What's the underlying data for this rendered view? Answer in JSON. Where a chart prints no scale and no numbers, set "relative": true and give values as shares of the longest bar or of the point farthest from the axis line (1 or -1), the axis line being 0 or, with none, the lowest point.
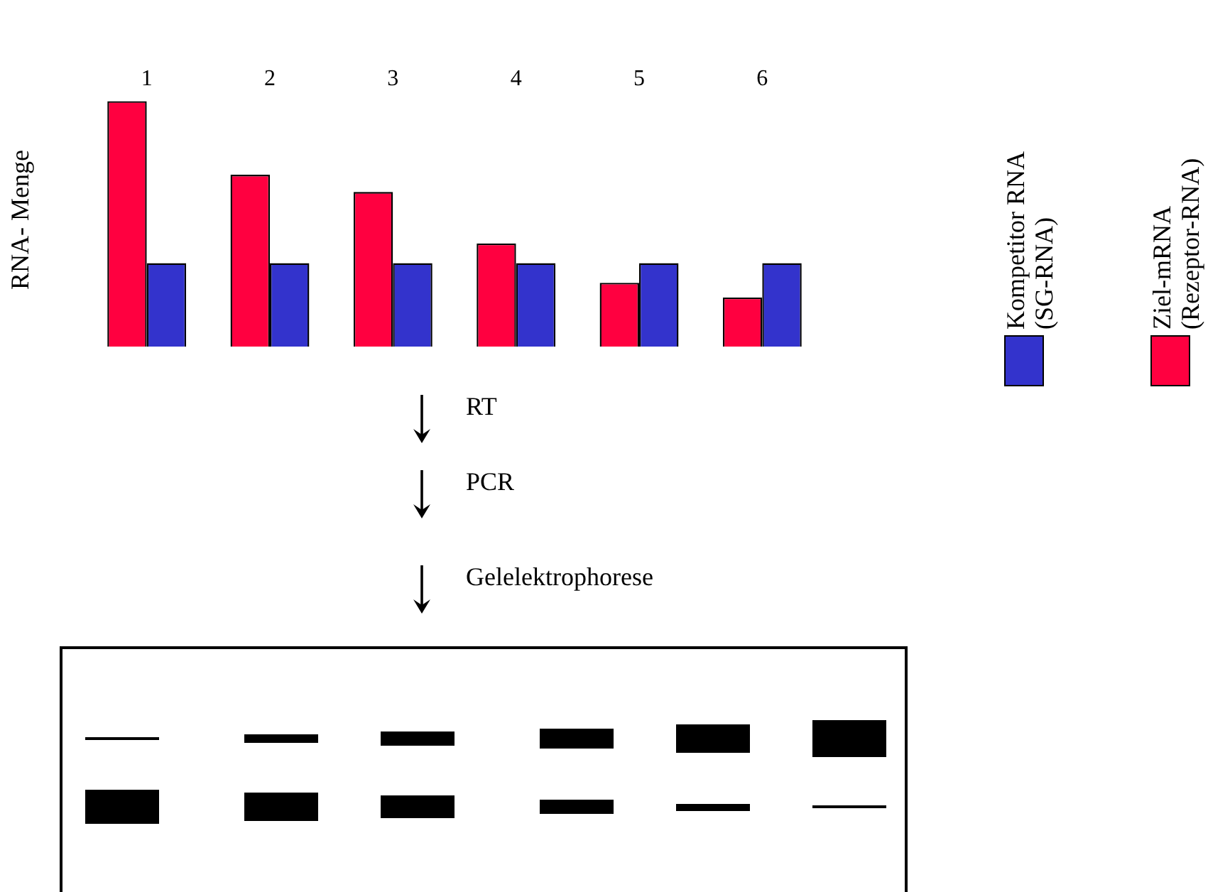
{
  "chart_data": {
    "type": "bar",
    "relative": true,
    "ylabel": "RNA- Menge",
    "categories": [
      "1",
      "2",
      "3",
      "4",
      "5",
      "6"
    ],
    "series": [
      {
        "name": "Ziel-mRNA (Rezeptor-RNA)",
        "color": "#ff0040",
        "values": [
          1,
          0.7,
          0.63,
          0.42,
          0.26,
          0.2
        ]
      },
      {
        "name": "Kompetitor RNA (SG-RNA)",
        "color": "#3333cc",
        "values": [
          0.34,
          0.34,
          0.34,
          0.34,
          0.34,
          0.34
        ]
      }
    ],
    "legend": "right",
    "grid": false,
    "annotations": [
      "RT",
      "PCR",
      "Gelelektrophorese"
    ]
  }
}
